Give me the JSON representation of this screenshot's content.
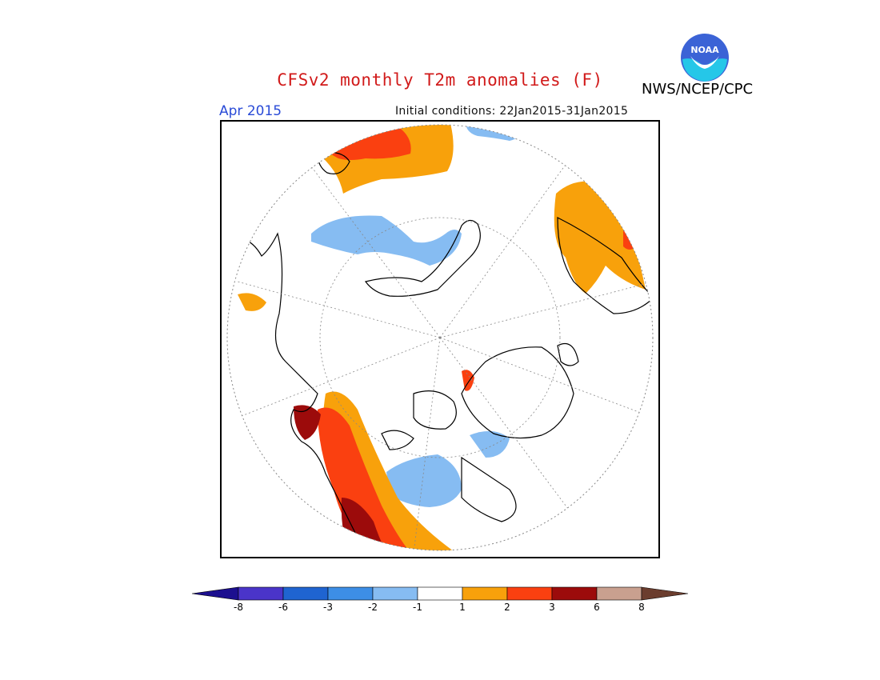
{
  "header": {
    "title": "CFSv2 monthly T2m anomalies (F)",
    "month": "Apr 2015",
    "initial_conditions": "Initial conditions: 22Jan2015-31Jan2015",
    "agency": "NWS/NCEP/CPC",
    "logo_text": "NOAA"
  },
  "colorbar": {
    "labels": [
      "-8",
      "-6",
      "-3",
      "-2",
      "-1",
      "1",
      "2",
      "3",
      "6",
      "8"
    ],
    "colors": [
      "#1c0f8f",
      "#4a34c9",
      "#1f64d1",
      "#3d8ee6",
      "#86bcf2",
      "#ffffff",
      "#f8a10b",
      "#fa4010",
      "#9c0b0b",
      "#c9a08f",
      "#6b3d2e"
    ]
  },
  "map": {
    "projection": "polar-stereographic",
    "warm_color": "#f8a10b",
    "hot_color": "#fa4010",
    "very_hot_color": "#9c0b0b",
    "cool_color": "#86bcf2"
  }
}
